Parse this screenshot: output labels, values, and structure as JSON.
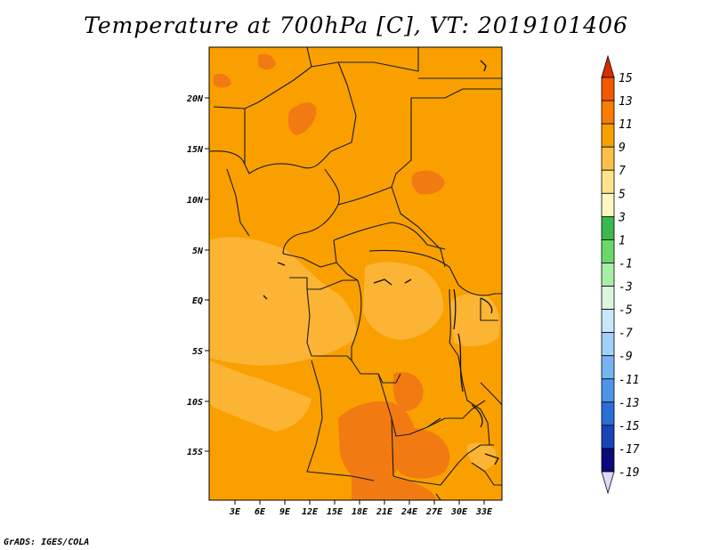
{
  "title": "Temperature at 700hPa [C], VT: 2019101406",
  "credit": "GrADS: IGES/COLA",
  "map": {
    "lat_labels": [
      "20N",
      "15N",
      "10N",
      "5N",
      "EQ",
      "5S",
      "10S",
      "15S"
    ],
    "lon_labels": [
      "3E",
      "6E",
      "9E",
      "12E",
      "15E",
      "18E",
      "21E",
      "24E",
      "27E",
      "30E",
      "33E"
    ],
    "base_color": "#f9a000"
  },
  "colorbar": {
    "labels": [
      "15",
      "13",
      "11",
      "9",
      "7",
      "5",
      "3",
      "1",
      "-1",
      "-3",
      "-5",
      "-7",
      "-9",
      "-11",
      "-13",
      "-15",
      "-17",
      "-19"
    ],
    "colors": [
      "#d62e00",
      "#f25a00",
      "#f97d00",
      "#f9a000",
      "#fbc04a",
      "#fde48c",
      "#fff7c0",
      "#3cb84a",
      "#6cd86c",
      "#a8eea8",
      "#dcf6dc",
      "#c8e6fc",
      "#a2d0fa",
      "#78b4f2",
      "#4c94e8",
      "#2a6ed8",
      "#1646b4",
      "#0a0a7a"
    ],
    "top_arrow_color": "#d62e00",
    "bottom_arrow_color": "#dcdcf8"
  }
}
